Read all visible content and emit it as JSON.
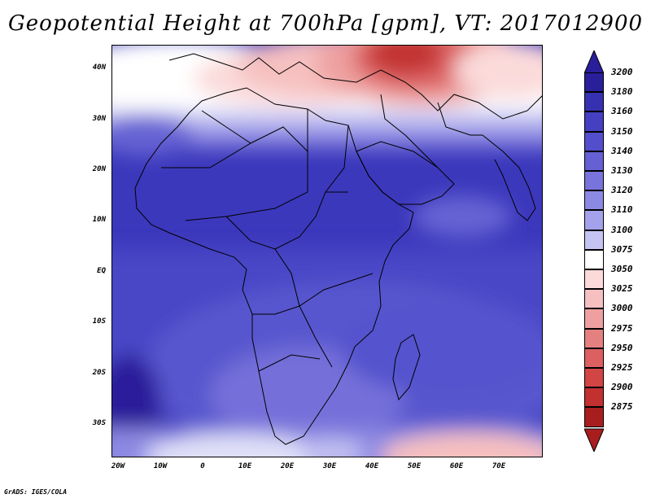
{
  "title": "Geopotential Height at 700hPa [gpm], VT: 2017012900",
  "credit": "GrADS: IGES/COLA",
  "lat_ticks": [
    "40N",
    "30N",
    "20N",
    "10N",
    "EQ",
    "10S",
    "20S",
    "30S"
  ],
  "lon_ticks": [
    "20W",
    "10W",
    "0",
    "10E",
    "20E",
    "30E",
    "40E",
    "50E",
    "60E",
    "70E"
  ],
  "colorbar": {
    "levels": [
      "3200",
      "3180",
      "3160",
      "3150",
      "3140",
      "3130",
      "3120",
      "3110",
      "3100",
      "3075",
      "3050",
      "3025",
      "3000",
      "2975",
      "2950",
      "2925",
      "2900",
      "2875"
    ],
    "colors": [
      "#2a1f9a",
      "#3631b0",
      "#4540c2",
      "#534fcc",
      "#6561d4",
      "#7874db",
      "#8c89e2",
      "#a4a2ea",
      "#c4c3f2",
      "#ffffff",
      "#fbdada",
      "#f6c0c0",
      "#eea0a0",
      "#e58080",
      "#dc6060",
      "#d24545",
      "#c23030",
      "#a81e1e"
    ]
  },
  "chart_data": {
    "type": "heatmap",
    "title": "Geopotential Height at 700hPa [gpm], VT: 2017012900",
    "variable": "Geopotential Height",
    "level": "700hPa",
    "units": "gpm",
    "valid_time": "2017012900",
    "lon_range": [
      -22,
      80
    ],
    "lat_range": [
      -37,
      45
    ],
    "colorbar_levels": [
      2875,
      2900,
      2925,
      2950,
      2975,
      3000,
      3025,
      3050,
      3075,
      3100,
      3110,
      3120,
      3130,
      3140,
      3150,
      3160,
      3180,
      3200
    ]
  }
}
